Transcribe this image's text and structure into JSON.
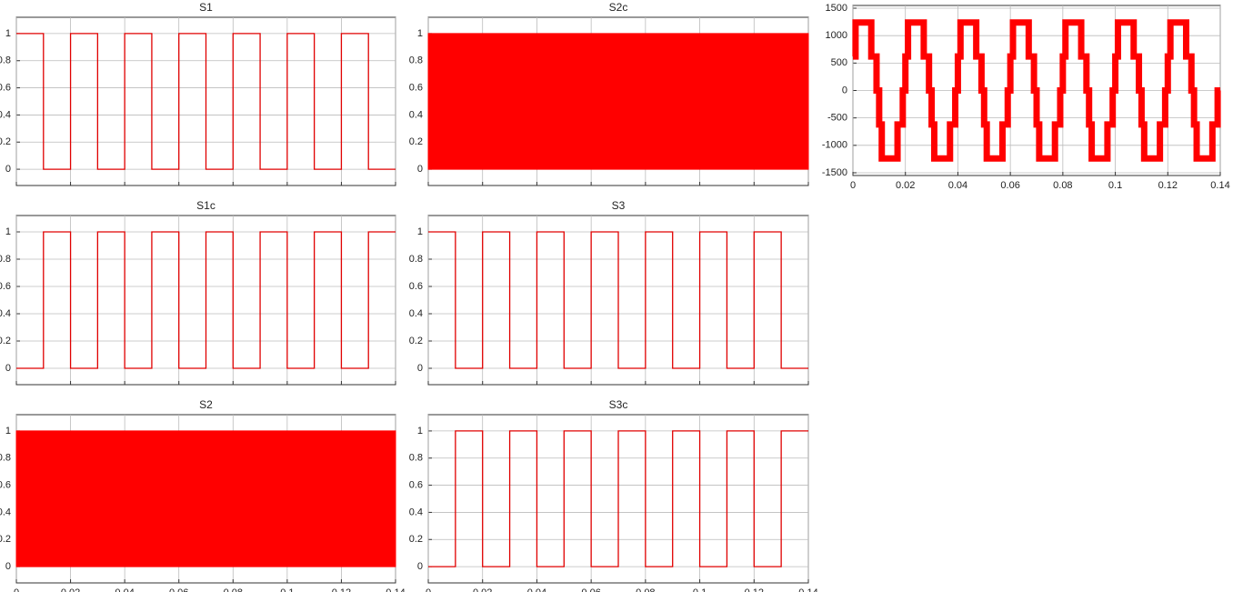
{
  "chart_data": [
    {
      "type": "line",
      "title": "S1",
      "grid": true,
      "color": "#e00000",
      "xtick_labels": false,
      "xlim": [
        0,
        0.14
      ],
      "xticks": [
        0,
        0.02,
        0.04,
        0.06,
        0.08,
        0.1,
        0.12,
        0.14
      ],
      "ylim": [
        -0.12,
        1.12
      ],
      "yticks": [
        0,
        0.2,
        0.4,
        0.6,
        0.8,
        1
      ],
      "x": [
        0,
        0.01,
        0.01,
        0.02,
        0.02,
        0.03,
        0.03,
        0.04,
        0.04,
        0.05,
        0.05,
        0.06,
        0.06,
        0.07,
        0.07,
        0.08,
        0.08,
        0.09,
        0.09,
        0.1,
        0.1,
        0.11,
        0.11,
        0.12,
        0.12,
        0.13,
        0.13,
        0.14
      ],
      "values": [
        1,
        1,
        0,
        0,
        1,
        1,
        0,
        0,
        1,
        1,
        0,
        0,
        1,
        1,
        0,
        0,
        1,
        1,
        0,
        0,
        1,
        1,
        0,
        0,
        1,
        1,
        0,
        0
      ]
    },
    {
      "type": "band",
      "title": "S2c",
      "grid": true,
      "color": "#ff0000",
      "xtick_labels": false,
      "xlim": [
        0,
        0.14
      ],
      "xticks": [
        0,
        0.02,
        0.04,
        0.06,
        0.08,
        0.1,
        0.12,
        0.14
      ],
      "ylim": [
        -0.12,
        1.12
      ],
      "yticks": [
        0,
        0.2,
        0.4,
        0.6,
        0.8,
        1
      ],
      "x": [
        0,
        0.14
      ],
      "low": [
        0,
        0
      ],
      "high": [
        1,
        1
      ]
    },
    {
      "type": "line",
      "grid": true,
      "color": "#ff0000",
      "xtick_labels": true,
      "thick": true,
      "xlim": [
        0,
        0.14
      ],
      "xticks": [
        0,
        0.02,
        0.04,
        0.06,
        0.08,
        0.1,
        0.12,
        0.14
      ],
      "ylim": [
        -1550,
        1550
      ],
      "yticks": [
        -1500,
        -1000,
        -500,
        0,
        500,
        1000,
        1500
      ],
      "x": [
        0,
        0.001,
        0.001,
        0.007,
        0.007,
        0.009,
        0.009,
        0.01,
        0.01,
        0.011,
        0.011,
        0.017,
        0.017,
        0.019,
        0.019,
        0.02,
        0.02,
        0.021,
        0.021,
        0.027,
        0.027,
        0.029,
        0.029,
        0.03,
        0.03,
        0.031,
        0.031,
        0.037,
        0.037,
        0.039,
        0.039,
        0.04,
        0.04,
        0.041,
        0.041,
        0.047,
        0.047,
        0.049,
        0.049,
        0.05,
        0.05,
        0.051,
        0.051,
        0.057,
        0.057,
        0.059,
        0.059,
        0.06,
        0.06,
        0.061,
        0.061,
        0.067,
        0.067,
        0.069,
        0.069,
        0.07,
        0.07,
        0.071,
        0.071,
        0.077,
        0.077,
        0.079,
        0.079,
        0.08,
        0.08,
        0.081,
        0.081,
        0.087,
        0.087,
        0.089,
        0.089,
        0.09,
        0.09,
        0.091,
        0.091,
        0.097,
        0.097,
        0.099,
        0.099,
        0.1,
        0.1,
        0.101,
        0.101,
        0.107,
        0.107,
        0.109,
        0.109,
        0.11,
        0.11,
        0.111,
        0.111,
        0.117,
        0.117,
        0.119,
        0.119,
        0.12,
        0.12,
        0.121,
        0.121,
        0.127,
        0.127,
        0.129,
        0.129,
        0.13,
        0.13,
        0.131,
        0.131,
        0.137,
        0.137,
        0.139,
        0.139,
        0.14
      ],
      "values": [
        620,
        620,
        1240,
        1240,
        620,
        620,
        0,
        0,
        -620,
        -620,
        -1240,
        -1240,
        -620,
        -620,
        0,
        0,
        620,
        620,
        1240,
        1240,
        620,
        620,
        0,
        0,
        -620,
        -620,
        -1240,
        -1240,
        -620,
        -620,
        0,
        0,
        620,
        620,
        1240,
        1240,
        620,
        620,
        0,
        0,
        -620,
        -620,
        -1240,
        -1240,
        -620,
        -620,
        0,
        0,
        620,
        620,
        1240,
        1240,
        620,
        620,
        0,
        0,
        -620,
        -620,
        -1240,
        -1240,
        -620,
        -620,
        0,
        0,
        620,
        620,
        1240,
        1240,
        620,
        620,
        0,
        0,
        -620,
        -620,
        -1240,
        -1240,
        -620,
        -620,
        0,
        0,
        620,
        620,
        1240,
        1240,
        620,
        620,
        0,
        0,
        -620,
        -620,
        -1240,
        -1240,
        -620,
        -620,
        0,
        0,
        620,
        620,
        1240,
        1240,
        620,
        620,
        0,
        0,
        -620,
        -620,
        -1240,
        -1240,
        -620,
        -620,
        0,
        0
      ]
    },
    {
      "type": "line",
      "title": "S1c",
      "grid": true,
      "color": "#e00000",
      "xtick_labels": false,
      "xlim": [
        0,
        0.14
      ],
      "xticks": [
        0,
        0.02,
        0.04,
        0.06,
        0.08,
        0.1,
        0.12,
        0.14
      ],
      "ylim": [
        -0.12,
        1.12
      ],
      "yticks": [
        0,
        0.2,
        0.4,
        0.6,
        0.8,
        1
      ],
      "x": [
        0,
        0.01,
        0.01,
        0.02,
        0.02,
        0.03,
        0.03,
        0.04,
        0.04,
        0.05,
        0.05,
        0.06,
        0.06,
        0.07,
        0.07,
        0.08,
        0.08,
        0.09,
        0.09,
        0.1,
        0.1,
        0.11,
        0.11,
        0.12,
        0.12,
        0.13,
        0.13,
        0.14
      ],
      "values": [
        0,
        0,
        1,
        1,
        0,
        0,
        1,
        1,
        0,
        0,
        1,
        1,
        0,
        0,
        1,
        1,
        0,
        0,
        1,
        1,
        0,
        0,
        1,
        1,
        0,
        0,
        1,
        1
      ]
    },
    {
      "type": "line",
      "title": "S3",
      "grid": true,
      "color": "#e00000",
      "xtick_labels": false,
      "xlim": [
        0,
        0.14
      ],
      "xticks": [
        0,
        0.02,
        0.04,
        0.06,
        0.08,
        0.1,
        0.12,
        0.14
      ],
      "ylim": [
        -0.12,
        1.12
      ],
      "yticks": [
        0,
        0.2,
        0.4,
        0.6,
        0.8,
        1
      ],
      "x": [
        0,
        0.01,
        0.01,
        0.02,
        0.02,
        0.03,
        0.03,
        0.04,
        0.04,
        0.05,
        0.05,
        0.06,
        0.06,
        0.07,
        0.07,
        0.08,
        0.08,
        0.09,
        0.09,
        0.1,
        0.1,
        0.11,
        0.11,
        0.12,
        0.12,
        0.13,
        0.13,
        0.14
      ],
      "values": [
        1,
        1,
        0,
        0,
        1,
        1,
        0,
        0,
        1,
        1,
        0,
        0,
        1,
        1,
        0,
        0,
        1,
        1,
        0,
        0,
        1,
        1,
        0,
        0,
        1,
        1,
        0,
        0
      ]
    },
    {
      "type": "band",
      "title": "S2",
      "grid": true,
      "color": "#ff0000",
      "xtick_labels": true,
      "xlim": [
        0,
        0.14
      ],
      "xticks": [
        0,
        0.02,
        0.04,
        0.06,
        0.08,
        0.1,
        0.12,
        0.14
      ],
      "ylim": [
        -0.12,
        1.12
      ],
      "yticks": [
        0,
        0.2,
        0.4,
        0.6,
        0.8,
        1
      ],
      "x": [
        0,
        0.14
      ],
      "low": [
        0,
        0
      ],
      "high": [
        1,
        1
      ]
    },
    {
      "type": "line",
      "title": "S3c",
      "grid": true,
      "color": "#e00000",
      "xtick_labels": true,
      "xlim": [
        0,
        0.14
      ],
      "xticks": [
        0,
        0.02,
        0.04,
        0.06,
        0.08,
        0.1,
        0.12,
        0.14
      ],
      "ylim": [
        -0.12,
        1.12
      ],
      "yticks": [
        0,
        0.2,
        0.4,
        0.6,
        0.8,
        1
      ],
      "x": [
        0,
        0.01,
        0.01,
        0.02,
        0.02,
        0.03,
        0.03,
        0.04,
        0.04,
        0.05,
        0.05,
        0.06,
        0.06,
        0.07,
        0.07,
        0.08,
        0.08,
        0.09,
        0.09,
        0.1,
        0.1,
        0.11,
        0.11,
        0.12,
        0.12,
        0.13,
        0.13,
        0.14
      ],
      "values": [
        0,
        0,
        1,
        1,
        0,
        0,
        1,
        1,
        0,
        0,
        1,
        1,
        0,
        0,
        1,
        1,
        0,
        0,
        1,
        1,
        0,
        0,
        1,
        1,
        0,
        0,
        1,
        1
      ]
    }
  ]
}
